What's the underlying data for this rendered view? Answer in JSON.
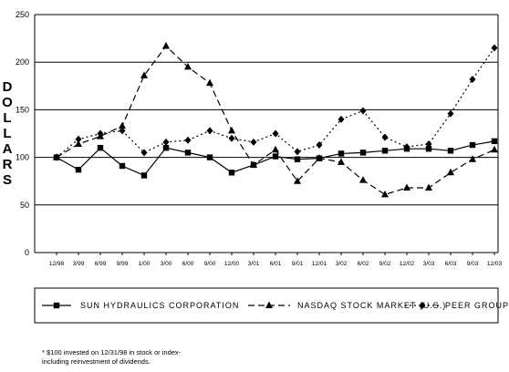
{
  "chart_data": {
    "type": "line",
    "title": "",
    "xlabel": "",
    "ylabel": "DOLLARS",
    "ylim": [
      0,
      250
    ],
    "yticks": [
      0,
      50,
      100,
      150,
      200,
      250
    ],
    "grid": "horizontal",
    "legend_position": "bottom",
    "categories": [
      "12/98",
      "3/99",
      "6/99",
      "9/99",
      "1/00",
      "3/00",
      "6/00",
      "9/00",
      "12/00",
      "3/01",
      "6/01",
      "9/01",
      "12/01",
      "3/02",
      "6/02",
      "9/02",
      "12/02",
      "3/03",
      "6/03",
      "9/03",
      "12/03"
    ],
    "series": [
      {
        "name": "SUN HYDRAULICS CORPORATION",
        "marker": "square",
        "dash": "solid",
        "values": [
          100,
          87,
          110,
          91,
          81,
          110,
          105,
          100,
          84,
          92,
          101,
          98,
          99,
          104,
          105,
          107,
          109,
          109,
          107,
          113,
          117
        ]
      },
      {
        "name": "NASDAQ STOCK MARKET (U.S.)",
        "marker": "triangle",
        "dash": "dashed",
        "values": [
          100,
          114,
          122,
          133,
          186,
          217,
          195,
          178,
          128,
          92,
          108,
          75,
          99,
          95,
          76,
          61,
          68,
          68,
          84,
          98,
          108
        ]
      },
      {
        "name": "PEER GROUP",
        "marker": "diamond",
        "dash": "dotted",
        "values": [
          100,
          119,
          125,
          128,
          105,
          116,
          118,
          128,
          120,
          116,
          125,
          106,
          113,
          140,
          149,
          121,
          111,
          114,
          146,
          182,
          215
        ]
      }
    ]
  },
  "ylabel_letters": [
    "D",
    "O",
    "L",
    "L",
    "A",
    "R",
    "S"
  ],
  "footnote": "* $100 invested on 12/31/98 in stock or index-\nincluding reinvestment of dividends."
}
